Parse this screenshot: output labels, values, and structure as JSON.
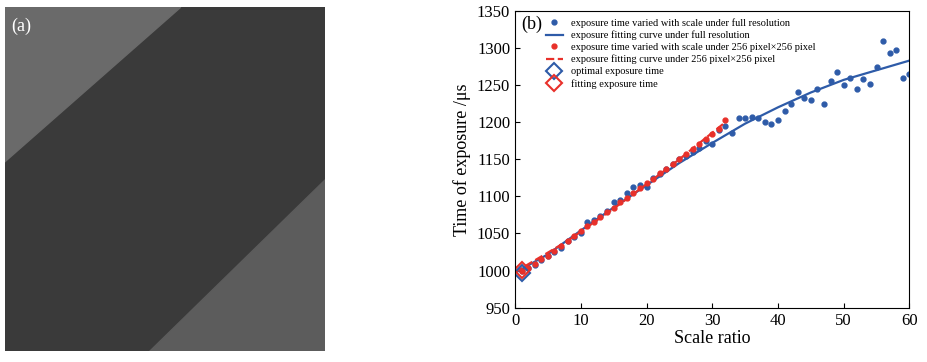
{
  "chart_data": {
    "type": "line",
    "title": "(b)",
    "x_label": "Scale ratio",
    "y_label": "Time of exposure /μs",
    "xlim": [
      0,
      60
    ],
    "xticks": [
      0,
      10,
      20,
      30,
      40,
      50,
      60
    ],
    "ylim": [
      950,
      1350
    ],
    "yticks": [
      950,
      1000,
      1050,
      1100,
      1150,
      1200,
      1250,
      1300,
      1350
    ],
    "legend": "upper left",
    "series": [
      {
        "name": "exposure time varied with scale under full resolution",
        "type": "scatter",
        "color": "#2e5ba8",
        "marker": "circle",
        "line_style": "none",
        "x": [
          1,
          2,
          3,
          4,
          5,
          6,
          7,
          8,
          9,
          10,
          11,
          12,
          13,
          14,
          15,
          16,
          17,
          18,
          19,
          20,
          21,
          22,
          23,
          24,
          25,
          26,
          27,
          28,
          29,
          30,
          31,
          32,
          33,
          34,
          35,
          36,
          37,
          38,
          39,
          40,
          41,
          42,
          43,
          44,
          45,
          46,
          47,
          48,
          49,
          50,
          51,
          52,
          53,
          54,
          55,
          56,
          57,
          58,
          59,
          60
        ],
        "values": [
          1000,
          1003,
          1008,
          1014,
          1020,
          1025,
          1030,
          1040,
          1045,
          1050,
          1065,
          1068,
          1073,
          1080,
          1092,
          1095,
          1105,
          1112,
          1115,
          1113,
          1125,
          1130,
          1137,
          1143,
          1150,
          1155,
          1160,
          1165,
          1175,
          1170,
          1190,
          1195,
          1185,
          1205,
          1205,
          1207,
          1205,
          1200,
          1197,
          1203,
          1215,
          1225,
          1240,
          1232,
          1230,
          1245,
          1225,
          1255,
          1267,
          1250,
          1260,
          1245,
          1258,
          1252,
          1275,
          1310,
          1293,
          1297,
          1260,
          1265
        ]
      },
      {
        "name": "exposure fitting curve under full resolution",
        "type": "line",
        "color": "#2e5ba8",
        "marker": "none",
        "line_style": "solid",
        "x": [
          0,
          5,
          10,
          15,
          20,
          25,
          30,
          35,
          40,
          45,
          50,
          55,
          60
        ],
        "values": [
          997,
          1022,
          1054,
          1085,
          1115,
          1145,
          1172,
          1198,
          1220,
          1240,
          1257,
          1270,
          1283
        ]
      },
      {
        "name": "exposure time varied with scale under 256 pixel×256 pixel",
        "type": "scatter",
        "color": "#e8302a",
        "marker": "circle",
        "line_style": "none",
        "x": [
          1,
          2,
          3,
          4,
          5,
          6,
          7,
          8,
          9,
          10,
          11,
          12,
          13,
          14,
          15,
          16,
          17,
          18,
          19,
          20,
          21,
          22,
          23,
          24,
          25,
          26,
          27,
          28,
          29,
          30,
          31,
          32
        ],
        "values": [
          1000,
          1004,
          1009,
          1015,
          1020,
          1027,
          1033,
          1040,
          1046,
          1053,
          1060,
          1066,
          1072,
          1079,
          1085,
          1092,
          1098,
          1105,
          1111,
          1118,
          1124,
          1131,
          1137,
          1144,
          1150,
          1157,
          1164,
          1170,
          1177,
          1184,
          1191,
          1203
        ]
      },
      {
        "name": "exposure fitting curve under 256 pixel×256 pixel",
        "type": "line",
        "color": "#e8302a",
        "marker": "none",
        "line_style": "dashed",
        "x": [
          0,
          8,
          16,
          24,
          32
        ],
        "values": [
          998,
          1040,
          1090,
          1143,
          1200
        ]
      },
      {
        "name": "optimal exposure time",
        "type": "scatter",
        "color": "#2e5ba8",
        "marker": "diamond",
        "line_style": "none",
        "x": [
          1
        ],
        "values": [
          997
        ]
      },
      {
        "name": "fitting exposure time",
        "type": "scatter",
        "color": "#e8302a",
        "marker": "diamond",
        "line_style": "none",
        "x": [
          1
        ],
        "values": [
          1001
        ]
      }
    ]
  },
  "image_panel": {
    "label": "(a)"
  }
}
